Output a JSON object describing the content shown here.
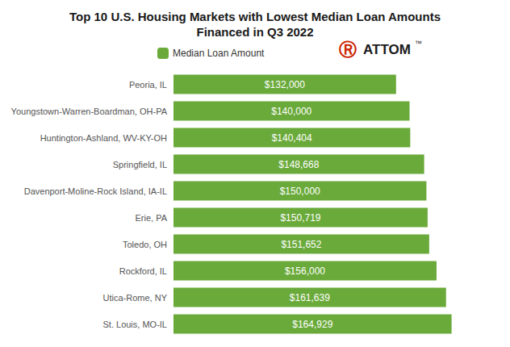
{
  "chart_data": {
    "type": "bar",
    "orientation": "horizontal",
    "title": "Top 10 U.S. Housing Markets with Lowest Median Loan Amounts",
    "subtitle": "Financed in Q3 2022",
    "categories": [
      "St. Louis, MO-IL",
      "Utica-Rome, NY",
      "Rockford, IL",
      "Toledo, OH",
      "Erie, PA",
      "Davenport-Moline-Rock Island, IA-IL",
      "Springfield, IL",
      "Huntington-Ashland, WV-KY-OH",
      "Youngstown-Warren-Boardman, OH-PA",
      "Peoria, IL"
    ],
    "series": [
      {
        "name": "Median Loan Amount",
        "color": "#6aaa3a",
        "values": [
          164929,
          161639,
          156000,
          151652,
          150719,
          150000,
          148668,
          140404,
          140000,
          132000
        ],
        "value_labels": [
          "$164,929",
          "$161,639",
          "$156,000",
          "$151,652",
          "$150,719",
          "$150,000",
          "$148,668",
          "$140,404",
          "$140,000",
          "$132,000"
        ]
      }
    ],
    "xlim": [
      0,
      190000
    ],
    "data_labels": true,
    "tick_labels": "y",
    "grid": false,
    "legend": "top",
    "annotations": [
      {
        "text": "Ⓡ",
        "color": "#cc2200"
      },
      {
        "text": "ATTOM",
        "color": "#1a1a1a"
      },
      {
        "text": "™",
        "color": "#1a1a1a"
      }
    ]
  }
}
